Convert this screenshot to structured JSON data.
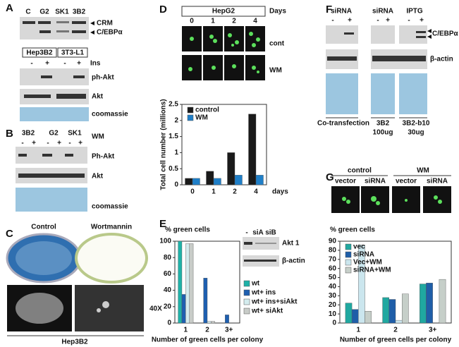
{
  "panels": {
    "A": {
      "label": "A",
      "lanes": [
        "C",
        "G2",
        "SK1",
        "3B2"
      ],
      "bands": [
        "CRM",
        "C/EBPα"
      ],
      "cells": [
        "Hep3B2",
        "3T3-L1"
      ],
      "treatment": "Ins",
      "signs": [
        "-",
        "+",
        "-",
        "+"
      ],
      "blots": [
        "ph-Akt",
        "Akt",
        "coomassie"
      ]
    },
    "B": {
      "label": "B",
      "lanes": [
        "3B2",
        "G2",
        "SK1"
      ],
      "treatment": "WM",
      "signs": [
        "-",
        "+",
        "-",
        "+",
        "-",
        "+"
      ],
      "blots": [
        "Ph-Akt",
        "Akt",
        "coomassie"
      ]
    },
    "C": {
      "label": "C",
      "conditions": [
        "Control",
        "Wortmannin"
      ],
      "magnification": "40X",
      "cells": "Hep3B2"
    },
    "D": {
      "label": "D",
      "cells": "HepG2",
      "days_label": "Days",
      "days": [
        "0",
        "1",
        "2",
        "4"
      ],
      "rows": [
        "cont",
        "WM"
      ]
    },
    "E": {
      "label": "E",
      "inset_lanes": [
        "-",
        "siA",
        "siB"
      ],
      "inset_blots": [
        "Akt 1",
        "β-actin"
      ]
    },
    "F": {
      "label": "F",
      "groups": [
        "siRNA",
        "siRNA",
        "IPTG"
      ],
      "signs": [
        "-",
        "+",
        "-",
        "+",
        "-",
        "+"
      ],
      "bands": [
        "C/EBPα",
        "β-actin"
      ],
      "captions": [
        "Co-transfection",
        "3B2",
        "100ug",
        "3B2-b10",
        "30ug"
      ]
    },
    "G": {
      "label": "G",
      "groups": [
        "control",
        "WM"
      ],
      "columns": [
        "vector",
        "siRNA",
        "vector",
        "siRNA"
      ]
    }
  },
  "chart_data": [
    {
      "type": "bar",
      "ylabel": "Total cell number (millions)",
      "xlabel": "days",
      "categories": [
        "0",
        "1",
        "2",
        "4"
      ],
      "series": [
        {
          "name": "control",
          "color": "#1a1a1a",
          "values": [
            0.2,
            0.42,
            1.0,
            2.2
          ]
        },
        {
          "name": "WM",
          "color": "#1f7fc8",
          "values": [
            0.2,
            0.2,
            0.3,
            0.3
          ]
        }
      ],
      "ylim": [
        0,
        2.5
      ],
      "yticks": [
        0,
        0.5,
        1,
        1.5,
        2,
        2.5
      ],
      "legend": "upper left"
    },
    {
      "type": "bar",
      "ylabel": "% green cells",
      "xlabel": "Number of green cells per colony",
      "categories": [
        "1",
        "2",
        "3+"
      ],
      "series": [
        {
          "name": "wt",
          "color": "#1fb2a8",
          "values": [
            100,
            0,
            0
          ]
        },
        {
          "name": "wt+ ins",
          "color": "#1e5fb0",
          "values": [
            35,
            55,
            10
          ]
        },
        {
          "name": "wt+ ins+siAkt",
          "color": "#d4ecee",
          "values": [
            97,
            2,
            0
          ]
        },
        {
          "name": "wt+ siAkt",
          "color": "#c8ccc8",
          "values": [
            97,
            2,
            0
          ]
        }
      ],
      "ylim": [
        0,
        100
      ],
      "yticks": [
        0,
        20,
        40,
        60,
        80,
        100
      ],
      "legend": "right"
    },
    {
      "type": "bar",
      "ylabel": "% green cells",
      "xlabel": "Number of green cells per colony",
      "categories": [
        "1",
        "2",
        "3+"
      ],
      "series": [
        {
          "name": "vec",
          "color": "#20a8a0",
          "values": [
            22,
            28,
            43
          ]
        },
        {
          "name": "siRNA",
          "color": "#1f5ea8",
          "values": [
            15,
            26,
            44
          ]
        },
        {
          "name": "Vec+WM",
          "color": "#cbe6ee",
          "values": [
            86,
            3,
            0
          ]
        },
        {
          "name": "siRNA+WM",
          "color": "#c6cfc9",
          "values": [
            13,
            32,
            48
          ]
        }
      ],
      "ylim": [
        0,
        90
      ],
      "yticks": [
        0,
        10,
        20,
        30,
        40,
        50,
        60,
        70,
        80,
        90
      ],
      "legend": "upper left"
    }
  ]
}
